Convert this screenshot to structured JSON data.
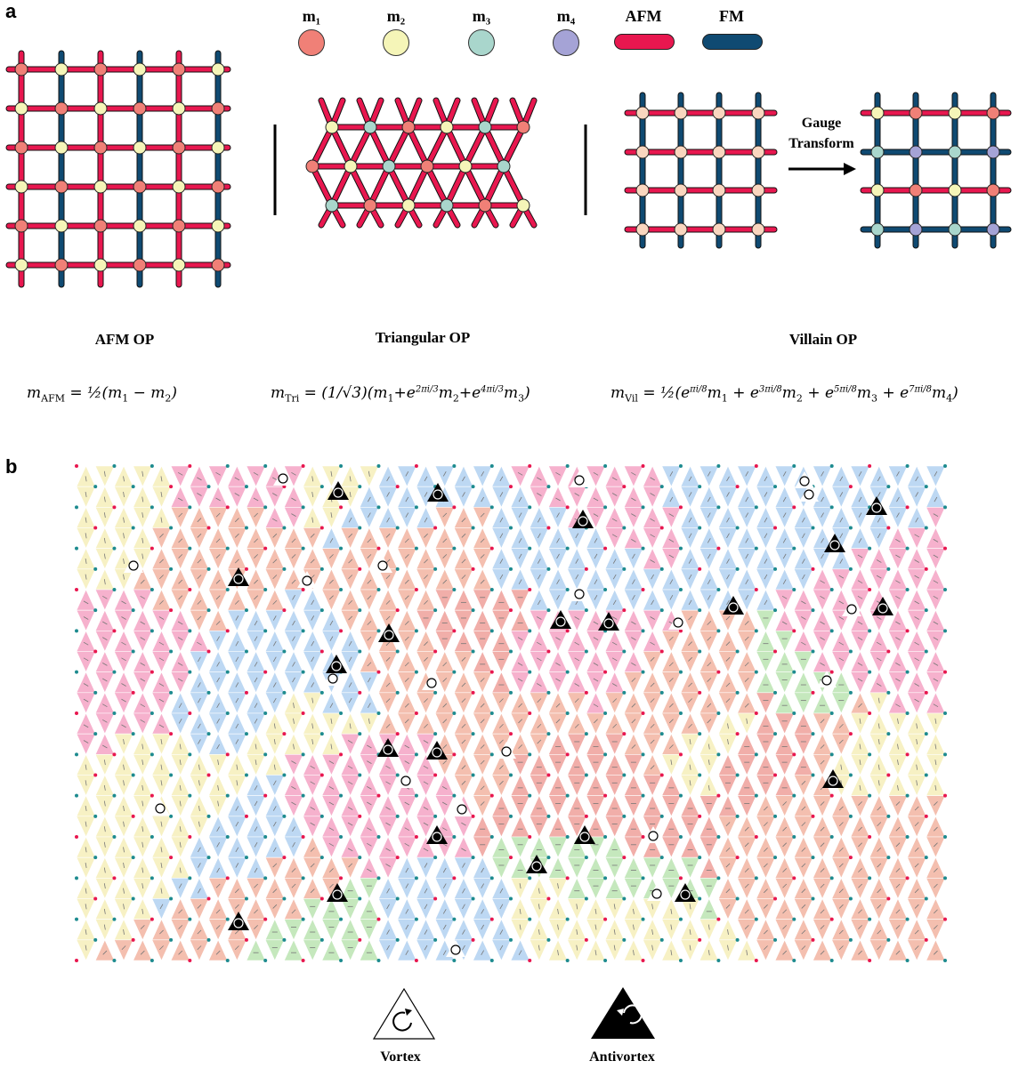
{
  "panel_a_label": "a",
  "panel_b_label": "b",
  "legend": [
    {
      "key": "m1",
      "label": "m₁",
      "kind": "circle",
      "color": "#f08077"
    },
    {
      "key": "m2",
      "label": "m₂",
      "kind": "circle",
      "color": "#f5f5b8"
    },
    {
      "key": "m3",
      "label": "m₃",
      "kind": "circle",
      "color": "#a9d6cc"
    },
    {
      "key": "m4",
      "label": "m₄",
      "kind": "circle",
      "color": "#a5a3d6"
    },
    {
      "key": "afm",
      "label": "AFM",
      "kind": "bond",
      "color": "#e8174f"
    },
    {
      "key": "fm",
      "label": "FM",
      "kind": "bond",
      "color": "#0f4a72"
    }
  ],
  "gauge_label_1": "Gauge",
  "gauge_label_2": "Transform",
  "op_titles": {
    "afm": "AFM OP",
    "tri": "Triangular OP",
    "vil": "Villain OP"
  },
  "formulas": {
    "afm": "m_AFM = 1/2 (m1 − m2)",
    "tri": "m_Tri = 1/√3 (m1 + e^{2πi/3} m2 + e^{4πi/3} m3)",
    "vil": "m_Vil = 1/2 (e^{πi/8} m1 + e^{3πi/8} m2 + e^{5πi/8} m3 + e^{7πi/8} m4)"
  },
  "defect_labels": {
    "vortex": "Vortex",
    "antivortex": "Antivortex"
  },
  "domain_colors": [
    "#f3b8a6",
    "#f5a8c8",
    "#b6d4f2",
    "#bfe6b6",
    "#f6efbe",
    "#efa5a0"
  ],
  "site_colors": {
    "red": "#e8174f",
    "teal": "#1d8b8f"
  }
}
